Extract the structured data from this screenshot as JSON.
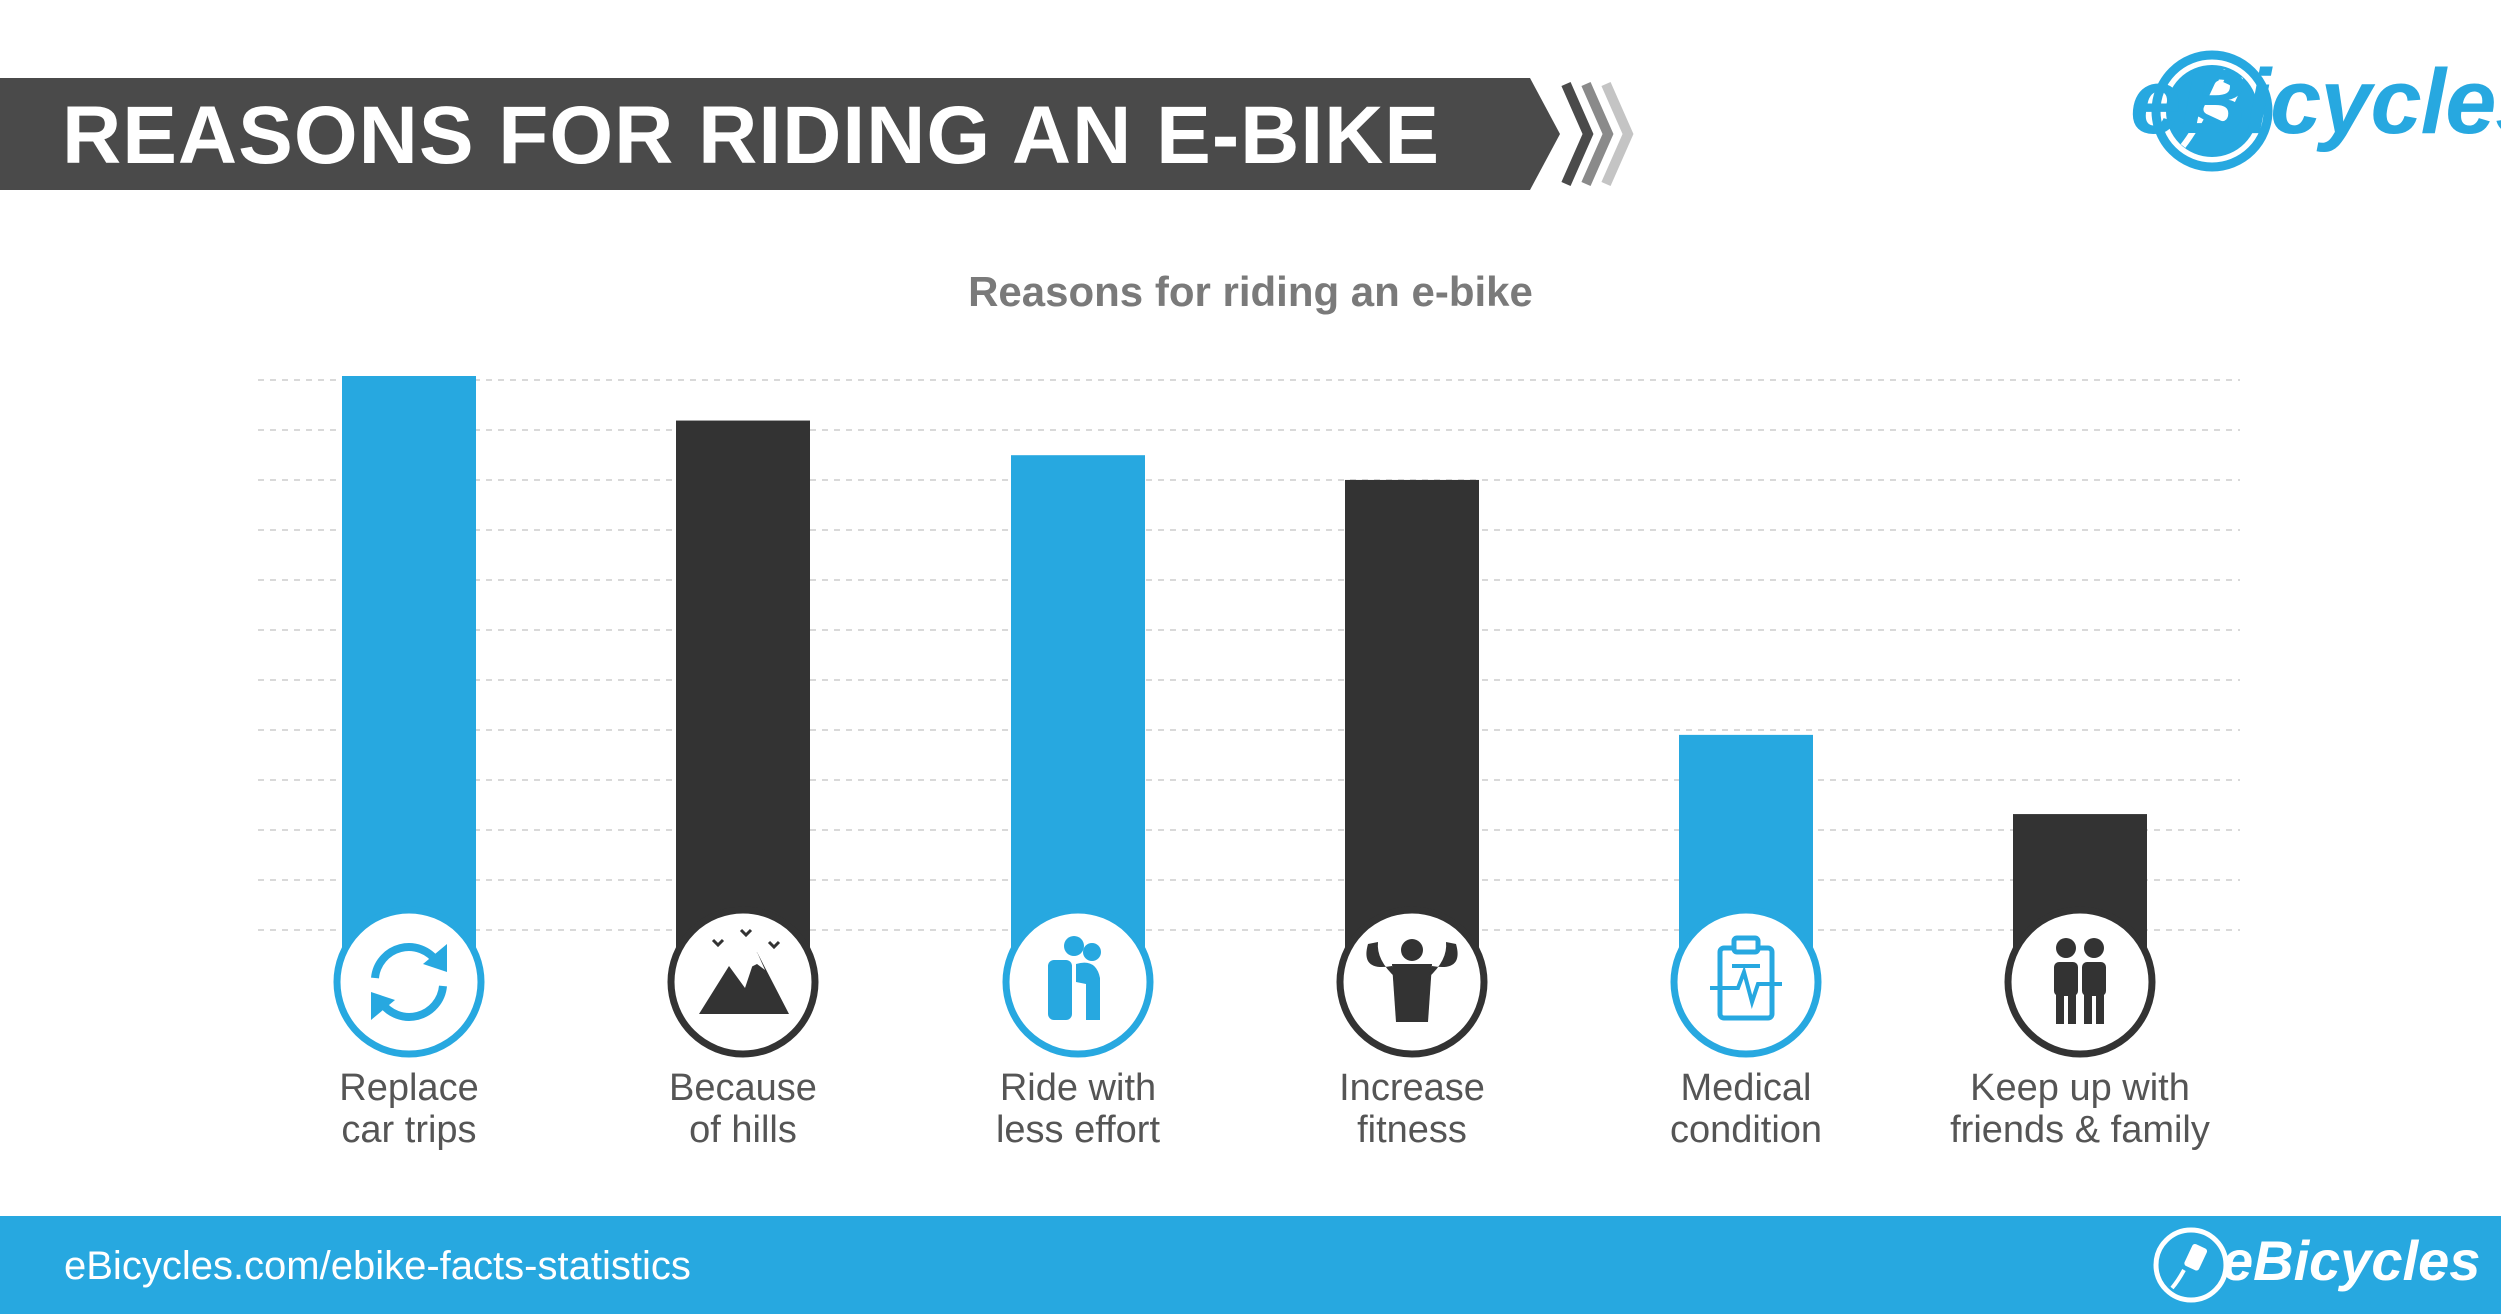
{
  "header": {
    "title": "REASONS FOR RIDING AN E-BIKE"
  },
  "brand": {
    "name": "eBicycles",
    "color": "#27a8e0"
  },
  "footer": {
    "url": "eBicycles.com/ebike-facts-statistics",
    "brand": "eBicycles"
  },
  "colors": {
    "blue": "#27a8e0",
    "dark": "#333333",
    "banner": "#4a4a4a"
  },
  "chart_data": {
    "type": "bar",
    "title": "Reasons for riding an e-bike",
    "categories": [
      "Replace car trips",
      "Because of hills",
      "Ride with less effort",
      "Increase fitness",
      "Medical condition",
      "Keep up with friends & family"
    ],
    "label_lines": [
      [
        "Replace",
        "car trips"
      ],
      [
        "Because",
        "of hills"
      ],
      [
        "Ride with",
        "less effort"
      ],
      [
        "Increase",
        "fitness"
      ],
      [
        "Medical",
        "condition"
      ],
      [
        "Keep up with",
        "friends & family"
      ]
    ],
    "values": [
      24,
      22.2,
      20.8,
      19.8,
      9.5,
      6.3
    ],
    "bar_colors": [
      "#27a8e0",
      "#333333",
      "#27a8e0",
      "#333333",
      "#27a8e0",
      "#333333"
    ],
    "icons": [
      "refresh-icon",
      "mountains-icon",
      "person-assisted-icon",
      "strongman-icon",
      "medical-clipboard-icon",
      "friends-icon"
    ],
    "ylim": [
      0,
      24
    ],
    "grid": true,
    "xlabel": "",
    "ylabel": ""
  }
}
